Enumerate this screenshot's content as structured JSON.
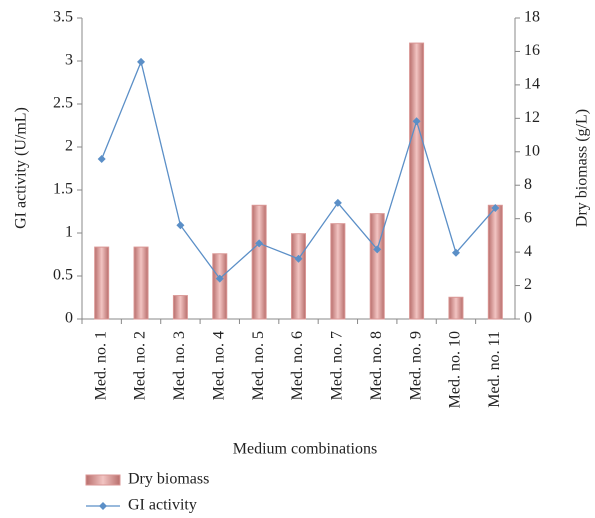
{
  "chart_data": {
    "type": "combo",
    "x_label": "Medium combinations",
    "y_label": "GI activity (U/mL)",
    "y2_label": "Dry biomass (g/L)",
    "categories": [
      "Med. no. 1",
      "Med. no. 2",
      "Med. no. 3",
      "Med. no. 4",
      "Med. no. 5",
      "Med. no. 6",
      "Med. no. 7",
      "Med. no. 8",
      "Med. no. 9",
      "Med. no. 10",
      "Med. no. 11"
    ],
    "series": [
      {
        "name": "Dry biomass",
        "type": "bar",
        "axis": "y2",
        "color": "#d99694",
        "values": [
          4.3,
          4.3,
          1.4,
          3.9,
          6.8,
          5.1,
          5.7,
          6.3,
          16.5,
          1.3,
          6.8
        ]
      },
      {
        "name": "GI activity",
        "type": "line",
        "axis": "y",
        "color": "#5b8fc7",
        "values": [
          1.86,
          2.99,
          1.09,
          0.47,
          0.88,
          0.7,
          1.35,
          0.81,
          2.3,
          0.77,
          1.29
        ]
      }
    ],
    "ylim": [
      0,
      3.5
    ],
    "yticks": [
      0,
      0.5,
      1,
      1.5,
      2,
      2.5,
      3,
      3.5
    ],
    "y2lim": [
      0,
      18
    ],
    "y2ticks": [
      0,
      2,
      4,
      6,
      8,
      10,
      12,
      14,
      16,
      18
    ],
    "grid": false
  }
}
